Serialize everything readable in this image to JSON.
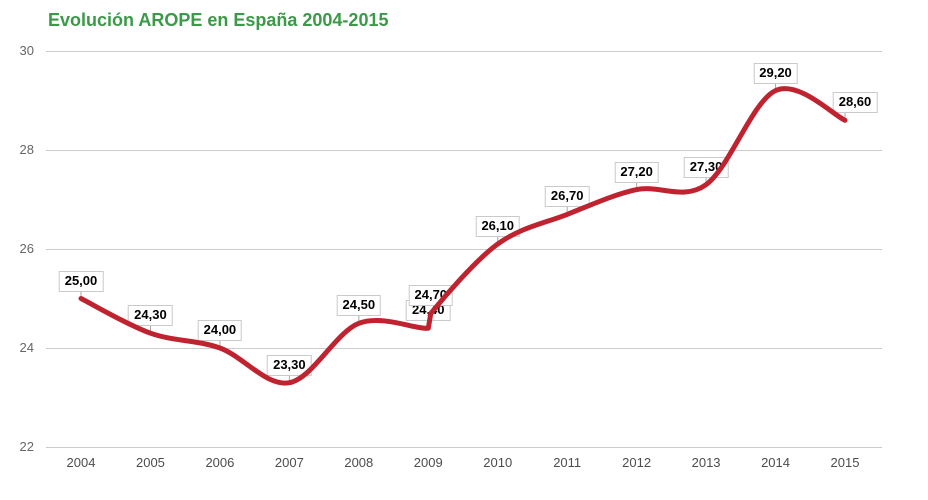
{
  "title": "Evolución AROPE en España 2004-2015",
  "colors": {
    "title": "#3a9a47",
    "line": "#bf232f",
    "grid": "#cccccc",
    "stem": "#a6a6a6",
    "axis_y_text": "#666666",
    "axis_x_text": "#4d4d4d",
    "annotation_text": "#000000",
    "annotation_border": "#cacaca",
    "annotation_bg": "#ffffff",
    "background": "#ffffff"
  },
  "chart_data": {
    "type": "line",
    "title": "Evolución AROPE en España 2004-2015",
    "curve": "smooth",
    "legend": "none",
    "grid": "horizontal",
    "x": [
      2004,
      2005,
      2006,
      2007,
      2008,
      2009,
      2009,
      2010,
      2011,
      2012,
      2013,
      2014,
      2015
    ],
    "series": [
      {
        "name": "AROPE",
        "values": [
          25.0,
          24.3,
          24.0,
          23.3,
          24.5,
          24.4,
          24.7,
          26.1,
          26.7,
          27.2,
          27.3,
          29.2,
          28.6
        ]
      }
    ],
    "point_labels": [
      "25,00",
      "24,30",
      "24,00",
      "23,30",
      "24,50",
      "24,40",
      "24,70",
      "26,10",
      "26,70",
      "27,20",
      "27,30",
      "29,20",
      "28,60"
    ],
    "x_tick_labels": [
      "2004",
      "2005",
      "2006",
      "2007",
      "2008",
      "2009",
      "2010",
      "2011",
      "2012",
      "2013",
      "2014",
      "2015"
    ],
    "y_ticks": [
      22,
      24,
      26,
      28,
      30
    ],
    "ylim": [
      22,
      30
    ],
    "xlabel": "",
    "ylabel": ""
  }
}
